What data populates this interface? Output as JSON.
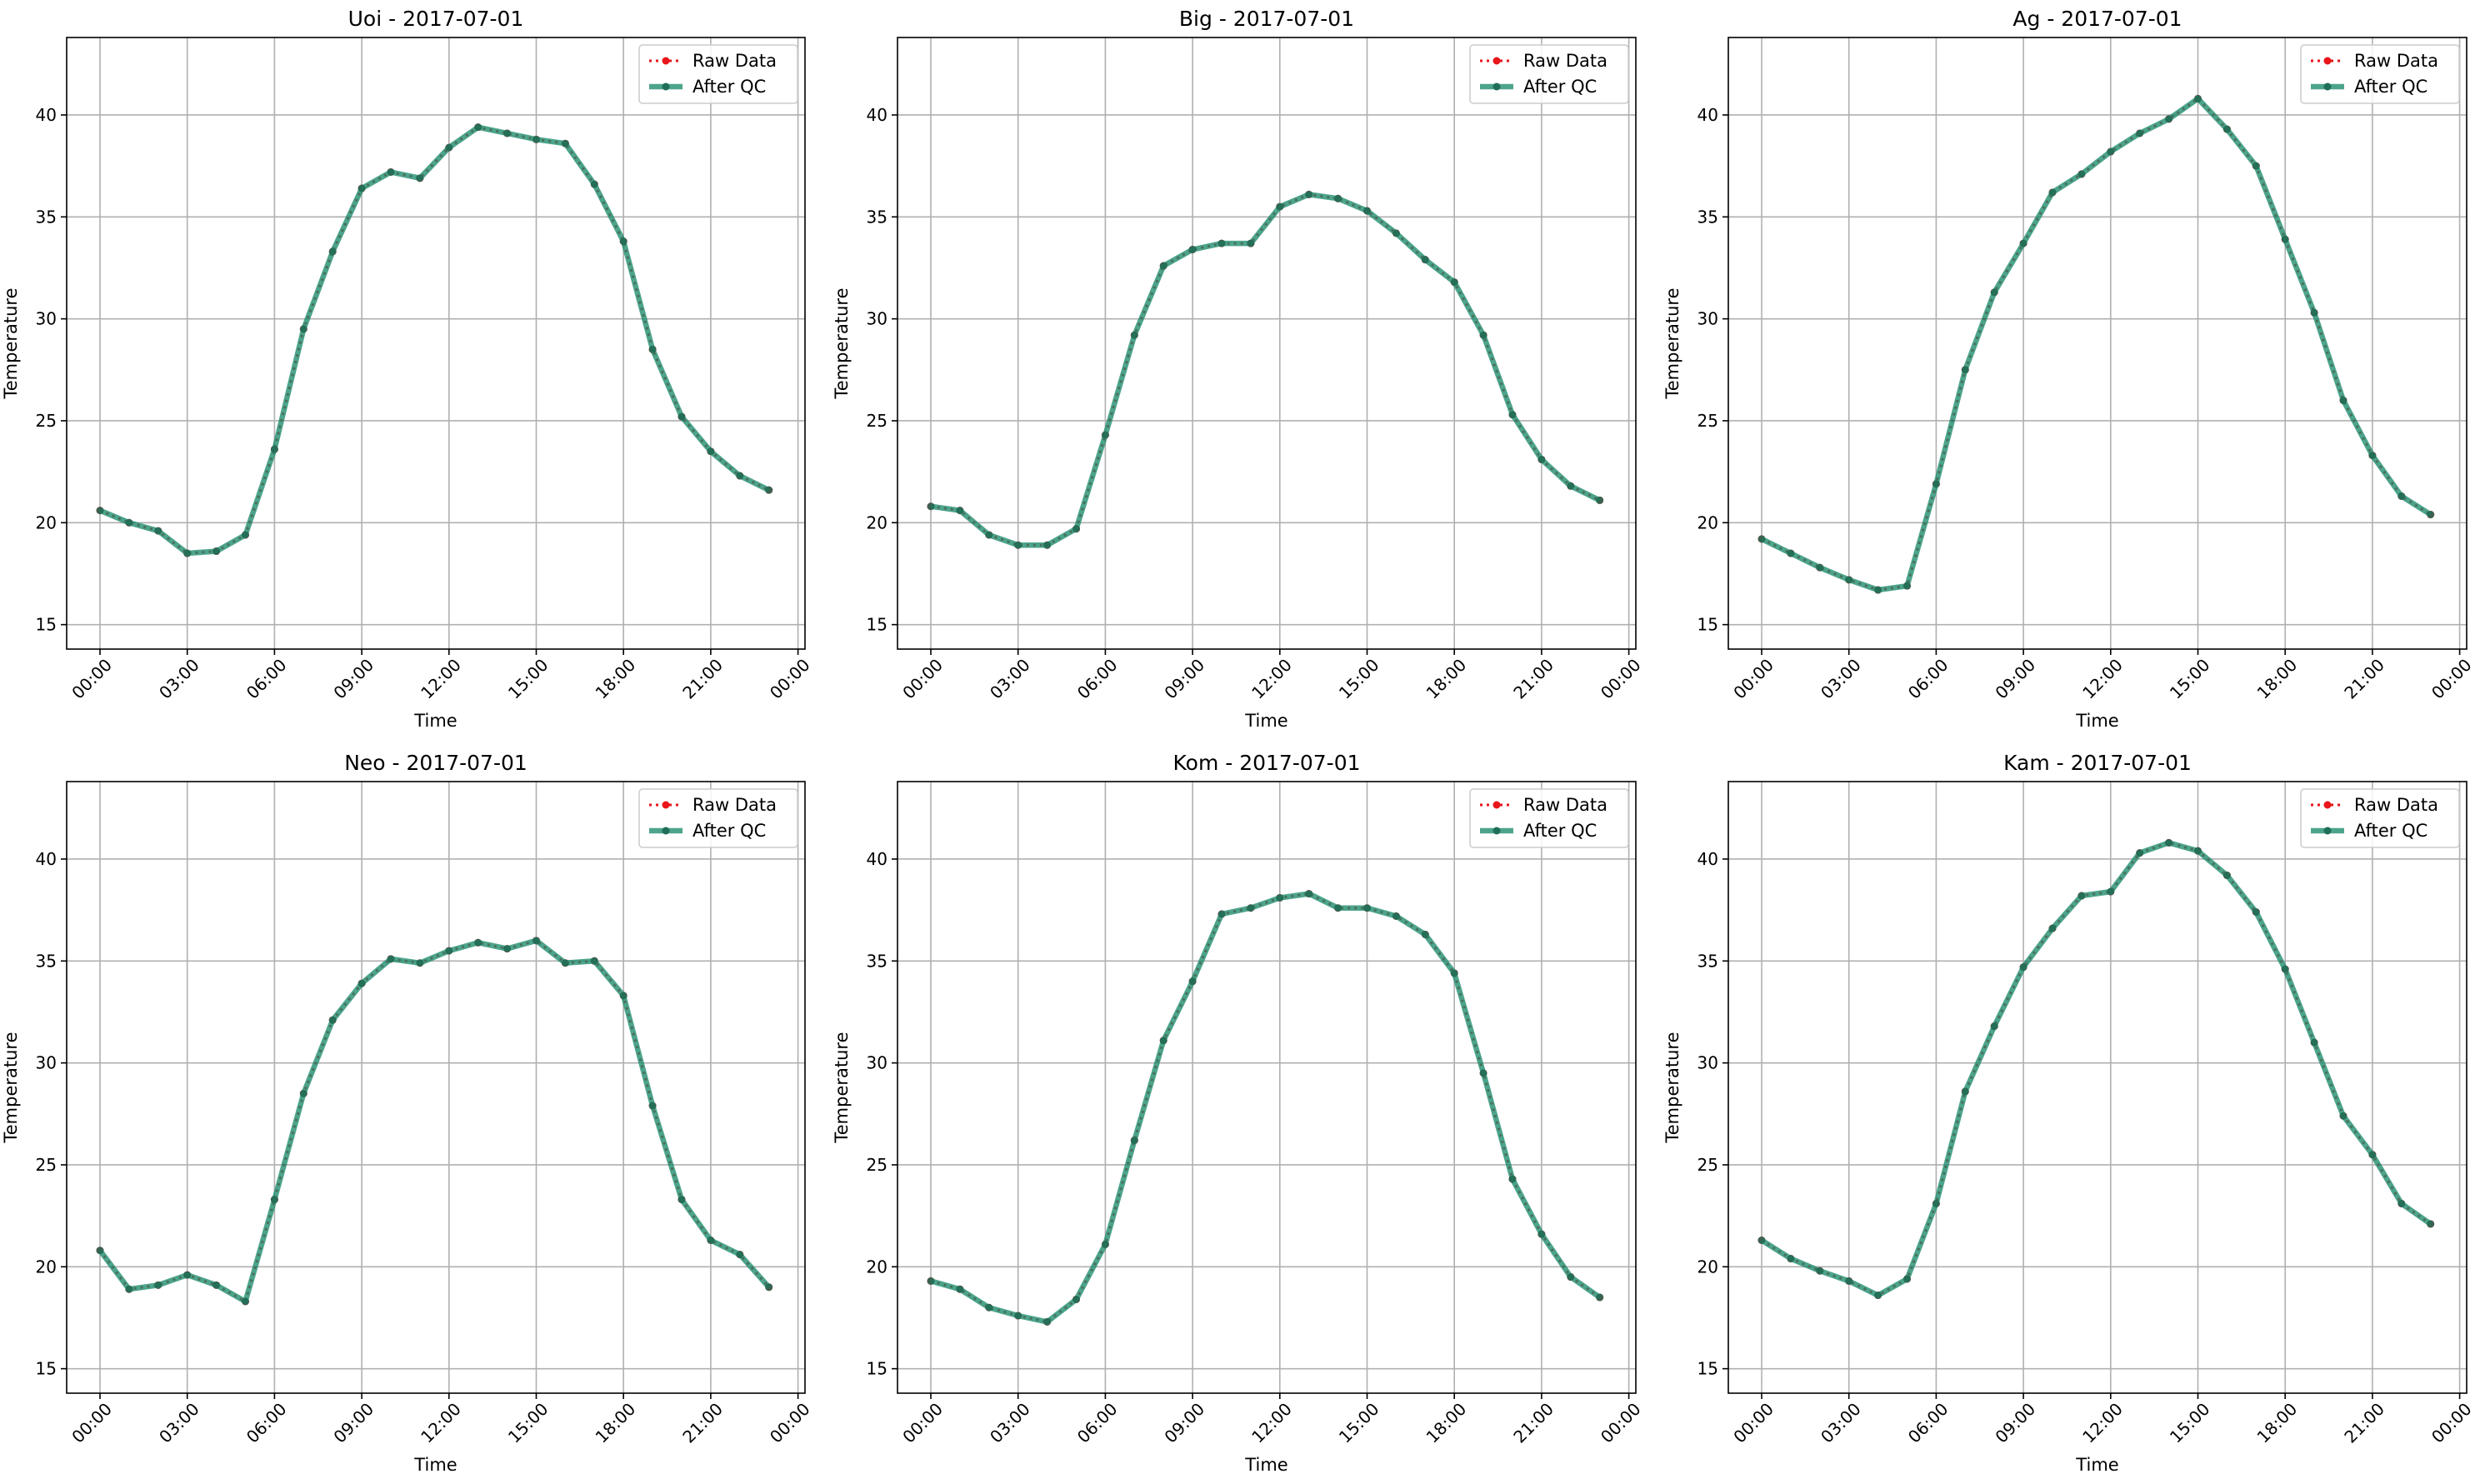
{
  "figure": {
    "panels": [
      "Uoi - 2017-07-01",
      "Big - 2017-07-01",
      "Ag - 2017-07-01",
      "Neo - 2017-07-01",
      "Kom - 2017-07-01",
      "Kam - 2017-07-01"
    ]
  },
  "chart_data": [
    {
      "type": "line",
      "title": "Uoi - 2017-07-01",
      "xlabel": "Time",
      "ylabel": "Temperature",
      "x": [
        "00:00",
        "01:00",
        "02:00",
        "03:00",
        "04:00",
        "05:00",
        "06:00",
        "07:00",
        "08:00",
        "09:00",
        "10:00",
        "11:00",
        "12:00",
        "13:00",
        "14:00",
        "15:00",
        "16:00",
        "17:00",
        "18:00",
        "19:00",
        "20:00",
        "21:00",
        "22:00",
        "23:00"
      ],
      "xticks": [
        "00:00",
        "03:00",
        "06:00",
        "09:00",
        "12:00",
        "15:00",
        "18:00",
        "21:00",
        "00:00"
      ],
      "yticks": [
        15,
        20,
        25,
        30,
        35,
        40
      ],
      "ylim": [
        13.8,
        43.8
      ],
      "grid": true,
      "legend": "top-right",
      "series": [
        {
          "name": "Raw Data",
          "color": "#e8151b",
          "values": [
            20.6,
            20.0,
            19.6,
            18.5,
            18.6,
            19.4,
            23.6,
            29.5,
            33.3,
            36.4,
            37.2,
            36.9,
            38.4,
            39.4,
            39.1,
            38.8,
            38.6,
            36.6,
            33.8,
            28.5,
            25.2,
            23.5,
            22.3,
            21.6
          ]
        },
        {
          "name": "After QC",
          "color": "#1b8a6b",
          "values": [
            20.6,
            20.0,
            19.6,
            18.5,
            18.6,
            19.4,
            23.6,
            29.5,
            33.3,
            36.4,
            37.2,
            36.9,
            38.4,
            39.4,
            39.1,
            38.8,
            38.6,
            36.6,
            33.8,
            28.5,
            25.2,
            23.5,
            22.3,
            21.6
          ]
        }
      ]
    },
    {
      "type": "line",
      "title": "Big - 2017-07-01",
      "xlabel": "Time",
      "ylabel": "Temperature",
      "x": [
        "00:00",
        "01:00",
        "02:00",
        "03:00",
        "04:00",
        "05:00",
        "06:00",
        "07:00",
        "08:00",
        "09:00",
        "10:00",
        "11:00",
        "12:00",
        "13:00",
        "14:00",
        "15:00",
        "16:00",
        "17:00",
        "18:00",
        "19:00",
        "20:00",
        "21:00",
        "22:00",
        "23:00"
      ],
      "xticks": [
        "00:00",
        "03:00",
        "06:00",
        "09:00",
        "12:00",
        "15:00",
        "18:00",
        "21:00",
        "00:00"
      ],
      "yticks": [
        15,
        20,
        25,
        30,
        35,
        40
      ],
      "ylim": [
        13.8,
        43.8
      ],
      "grid": true,
      "legend": "top-right",
      "series": [
        {
          "name": "Raw Data",
          "color": "#e8151b",
          "values": [
            20.8,
            20.6,
            19.4,
            18.9,
            18.9,
            19.7,
            24.3,
            29.2,
            32.6,
            33.4,
            33.7,
            33.7,
            35.5,
            36.1,
            35.9,
            35.3,
            34.2,
            32.9,
            31.8,
            29.2,
            25.3,
            23.1,
            21.8,
            21.1
          ]
        },
        {
          "name": "After QC",
          "color": "#1b8a6b",
          "values": [
            20.8,
            20.6,
            19.4,
            18.9,
            18.9,
            19.7,
            24.3,
            29.2,
            32.6,
            33.4,
            33.7,
            33.7,
            35.5,
            36.1,
            35.9,
            35.3,
            34.2,
            32.9,
            31.8,
            29.2,
            25.3,
            23.1,
            21.8,
            21.1
          ]
        }
      ]
    },
    {
      "type": "line",
      "title": "Ag - 2017-07-01",
      "xlabel": "Time",
      "ylabel": "Temperature",
      "x": [
        "00:00",
        "01:00",
        "02:00",
        "03:00",
        "04:00",
        "05:00",
        "06:00",
        "07:00",
        "08:00",
        "09:00",
        "10:00",
        "11:00",
        "12:00",
        "13:00",
        "14:00",
        "15:00",
        "16:00",
        "17:00",
        "18:00",
        "19:00",
        "20:00",
        "21:00",
        "22:00",
        "23:00"
      ],
      "xticks": [
        "00:00",
        "03:00",
        "06:00",
        "09:00",
        "12:00",
        "15:00",
        "18:00",
        "21:00",
        "00:00"
      ],
      "yticks": [
        15,
        20,
        25,
        30,
        35,
        40
      ],
      "ylim": [
        13.8,
        43.8
      ],
      "grid": true,
      "legend": "top-right",
      "series": [
        {
          "name": "Raw Data",
          "color": "#e8151b",
          "values": [
            19.2,
            18.5,
            17.8,
            17.2,
            16.7,
            16.9,
            21.9,
            27.5,
            31.3,
            33.7,
            36.2,
            37.1,
            38.2,
            39.1,
            39.8,
            40.8,
            39.3,
            37.5,
            33.9,
            30.3,
            26.0,
            23.3,
            21.3,
            20.4
          ]
        },
        {
          "name": "After QC",
          "color": "#1b8a6b",
          "values": [
            19.2,
            18.5,
            17.8,
            17.2,
            16.7,
            16.9,
            21.9,
            27.5,
            31.3,
            33.7,
            36.2,
            37.1,
            38.2,
            39.1,
            39.8,
            40.8,
            39.3,
            37.5,
            33.9,
            30.3,
            26.0,
            23.3,
            21.3,
            20.4
          ]
        }
      ]
    },
    {
      "type": "line",
      "title": "Neo - 2017-07-01",
      "xlabel": "Time",
      "ylabel": "Temperature",
      "x": [
        "00:00",
        "01:00",
        "02:00",
        "03:00",
        "04:00",
        "05:00",
        "06:00",
        "07:00",
        "08:00",
        "09:00",
        "10:00",
        "11:00",
        "12:00",
        "13:00",
        "14:00",
        "15:00",
        "16:00",
        "17:00",
        "18:00",
        "19:00",
        "20:00",
        "21:00",
        "22:00",
        "23:00"
      ],
      "xticks": [
        "00:00",
        "03:00",
        "06:00",
        "09:00",
        "12:00",
        "15:00",
        "18:00",
        "21:00",
        "00:00"
      ],
      "yticks": [
        15,
        20,
        25,
        30,
        35,
        40
      ],
      "ylim": [
        13.8,
        43.8
      ],
      "grid": true,
      "legend": "top-right",
      "series": [
        {
          "name": "Raw Data",
          "color": "#e8151b",
          "values": [
            20.8,
            18.9,
            19.1,
            19.6,
            19.1,
            18.3,
            23.3,
            28.5,
            32.1,
            33.9,
            35.1,
            34.9,
            35.5,
            35.9,
            35.6,
            36.0,
            34.9,
            35.0,
            33.3,
            27.9,
            23.3,
            21.3,
            20.6,
            19.0
          ]
        },
        {
          "name": "After QC",
          "color": "#1b8a6b",
          "values": [
            20.8,
            18.9,
            19.1,
            19.6,
            19.1,
            18.3,
            23.3,
            28.5,
            32.1,
            33.9,
            35.1,
            34.9,
            35.5,
            35.9,
            35.6,
            36.0,
            34.9,
            35.0,
            33.3,
            27.9,
            23.3,
            21.3,
            20.6,
            19.0
          ]
        }
      ]
    },
    {
      "type": "line",
      "title": "Kom - 2017-07-01",
      "xlabel": "Time",
      "ylabel": "Temperature",
      "x": [
        "00:00",
        "01:00",
        "02:00",
        "03:00",
        "04:00",
        "05:00",
        "06:00",
        "07:00",
        "08:00",
        "09:00",
        "10:00",
        "11:00",
        "12:00",
        "13:00",
        "14:00",
        "15:00",
        "16:00",
        "17:00",
        "18:00",
        "19:00",
        "20:00",
        "21:00",
        "22:00",
        "23:00"
      ],
      "xticks": [
        "00:00",
        "03:00",
        "06:00",
        "09:00",
        "12:00",
        "15:00",
        "18:00",
        "21:00",
        "00:00"
      ],
      "yticks": [
        15,
        20,
        25,
        30,
        35,
        40
      ],
      "ylim": [
        13.8,
        43.8
      ],
      "grid": true,
      "legend": "top-right",
      "series": [
        {
          "name": "Raw Data",
          "color": "#e8151b",
          "values": [
            19.3,
            18.9,
            18.0,
            17.6,
            17.3,
            18.4,
            21.1,
            26.2,
            31.1,
            34.0,
            37.3,
            37.6,
            38.1,
            38.3,
            37.6,
            37.6,
            37.2,
            36.3,
            34.4,
            29.5,
            24.3,
            21.6,
            19.5,
            18.5
          ]
        },
        {
          "name": "After QC",
          "color": "#1b8a6b",
          "values": [
            19.3,
            18.9,
            18.0,
            17.6,
            17.3,
            18.4,
            21.1,
            26.2,
            31.1,
            34.0,
            37.3,
            37.6,
            38.1,
            38.3,
            37.6,
            37.6,
            37.2,
            36.3,
            34.4,
            29.5,
            24.3,
            21.6,
            19.5,
            18.5
          ]
        }
      ]
    },
    {
      "type": "line",
      "title": "Kam - 2017-07-01",
      "xlabel": "Time",
      "ylabel": "Temperature",
      "x": [
        "00:00",
        "01:00",
        "02:00",
        "03:00",
        "04:00",
        "05:00",
        "06:00",
        "07:00",
        "08:00",
        "09:00",
        "10:00",
        "11:00",
        "12:00",
        "13:00",
        "14:00",
        "15:00",
        "16:00",
        "17:00",
        "18:00",
        "19:00",
        "20:00",
        "21:00",
        "22:00",
        "23:00"
      ],
      "xticks": [
        "00:00",
        "03:00",
        "06:00",
        "09:00",
        "12:00",
        "15:00",
        "18:00",
        "21:00",
        "00:00"
      ],
      "yticks": [
        15,
        20,
        25,
        30,
        35,
        40
      ],
      "ylim": [
        13.8,
        43.8
      ],
      "grid": true,
      "legend": "top-right",
      "series": [
        {
          "name": "Raw Data",
          "color": "#e8151b",
          "values": [
            21.3,
            20.4,
            19.8,
            19.3,
            18.6,
            19.4,
            23.1,
            28.6,
            31.8,
            34.7,
            36.6,
            38.2,
            38.4,
            40.3,
            40.8,
            40.4,
            39.2,
            37.4,
            34.6,
            31.0,
            27.4,
            25.5,
            23.1,
            22.1
          ]
        },
        {
          "name": "After QC",
          "color": "#1b8a6b",
          "values": [
            21.3,
            20.4,
            19.8,
            19.3,
            18.6,
            19.4,
            23.1,
            28.6,
            31.8,
            34.7,
            36.6,
            38.2,
            38.4,
            40.3,
            40.8,
            40.4,
            39.2,
            37.4,
            34.6,
            31.0,
            27.4,
            25.5,
            23.1,
            22.1
          ]
        }
      ]
    }
  ]
}
